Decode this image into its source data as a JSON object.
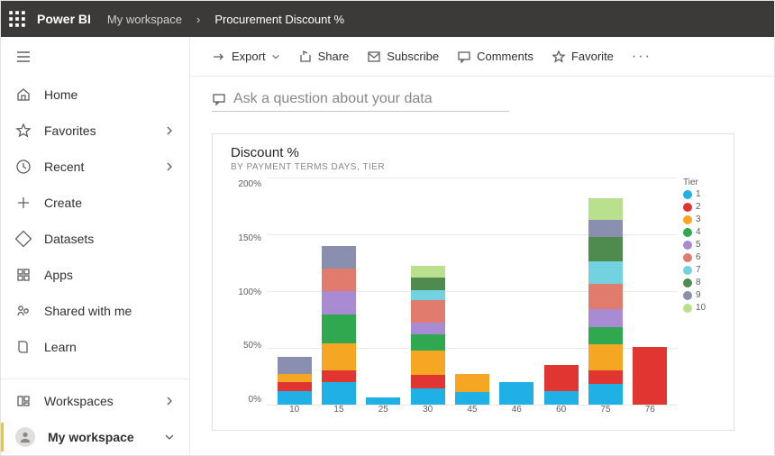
{
  "topbar": {
    "brand": "Power BI",
    "crumb1": "My workspace",
    "crumb2": "Procurement Discount %"
  },
  "sidebar": {
    "items": [
      {
        "key": "home",
        "label": "Home",
        "chev": false
      },
      {
        "key": "favorites",
        "label": "Favorites",
        "chev": true
      },
      {
        "key": "recent",
        "label": "Recent",
        "chev": true
      },
      {
        "key": "create",
        "label": "Create",
        "chev": false
      },
      {
        "key": "datasets",
        "label": "Datasets",
        "chev": false
      },
      {
        "key": "apps",
        "label": "Apps",
        "chev": false
      },
      {
        "key": "shared",
        "label": "Shared with me",
        "chev": false
      },
      {
        "key": "learn",
        "label": "Learn",
        "chev": false
      }
    ],
    "bottom": [
      {
        "key": "workspaces",
        "label": "Workspaces",
        "chev": true
      },
      {
        "key": "myworkspace",
        "label": "My workspace",
        "chev": true,
        "active": true
      }
    ]
  },
  "toolbar": {
    "export": "Export",
    "share": "Share",
    "subscribe": "Subscribe",
    "comments": "Comments",
    "favorite": "Favorite"
  },
  "qna": {
    "placeholder": "Ask a question about your data"
  },
  "tile": {
    "title": "Discount %",
    "subtitle": "BY PAYMENT TERMS DAYS, TIER"
  },
  "chart": {
    "type": "stacked-bar",
    "ylim": [
      0,
      200
    ],
    "ytick_step": 50,
    "y_ticks": [
      "200%",
      "150%",
      "100%",
      "50%",
      "0%"
    ],
    "gridline_color": "#eceae8",
    "background_color": "#ffffff",
    "categories": [
      "10",
      "15",
      "25",
      "30",
      "45",
      "46",
      "60",
      "75",
      "76"
    ],
    "tier_colors": {
      "1": "#1fb0e6",
      "2": "#e03531",
      "3": "#f5a623",
      "4": "#2fa84f",
      "5": "#a98bd4",
      "6": "#e07b6d",
      "7": "#73d2e0",
      "8": "#4f8a4f",
      "9": "#8a8fb0",
      "10": "#b9e08c"
    },
    "series": [
      {
        "cat": "10",
        "stack": [
          {
            "tier": "1",
            "v": 12
          },
          {
            "tier": "2",
            "v": 8
          },
          {
            "tier": "3",
            "v": 7
          },
          {
            "tier": "9",
            "v": 15
          }
        ]
      },
      {
        "cat": "15",
        "stack": [
          {
            "tier": "1",
            "v": 20
          },
          {
            "tier": "2",
            "v": 10
          },
          {
            "tier": "3",
            "v": 24
          },
          {
            "tier": "4",
            "v": 25
          },
          {
            "tier": "5",
            "v": 21
          },
          {
            "tier": "6",
            "v": 20
          },
          {
            "tier": "9",
            "v": 20
          }
        ]
      },
      {
        "cat": "25",
        "stack": [
          {
            "tier": "1",
            "v": 6
          }
        ]
      },
      {
        "cat": "30",
        "stack": [
          {
            "tier": "1",
            "v": 14
          },
          {
            "tier": "2",
            "v": 12
          },
          {
            "tier": "3",
            "v": 22
          },
          {
            "tier": "4",
            "v": 14
          },
          {
            "tier": "5",
            "v": 10
          },
          {
            "tier": "6",
            "v": 20
          },
          {
            "tier": "7",
            "v": 9
          },
          {
            "tier": "8",
            "v": 11
          },
          {
            "tier": "10",
            "v": 10
          }
        ]
      },
      {
        "cat": "45",
        "stack": [
          {
            "tier": "1",
            "v": 11
          },
          {
            "tier": "3",
            "v": 16
          }
        ]
      },
      {
        "cat": "46",
        "stack": [
          {
            "tier": "1",
            "v": 20
          }
        ]
      },
      {
        "cat": "60",
        "stack": [
          {
            "tier": "1",
            "v": 12
          },
          {
            "tier": "2",
            "v": 23
          }
        ]
      },
      {
        "cat": "75",
        "stack": [
          {
            "tier": "1",
            "v": 18
          },
          {
            "tier": "2",
            "v": 12
          },
          {
            "tier": "3",
            "v": 23
          },
          {
            "tier": "4",
            "v": 15
          },
          {
            "tier": "5",
            "v": 16
          },
          {
            "tier": "6",
            "v": 22
          },
          {
            "tier": "7",
            "v": 20
          },
          {
            "tier": "8",
            "v": 22
          },
          {
            "tier": "9",
            "v": 15
          },
          {
            "tier": "10",
            "v": 19
          }
        ]
      },
      {
        "cat": "76",
        "stack": [
          {
            "tier": "2",
            "v": 51
          }
        ]
      }
    ],
    "legend_title": "Tier",
    "legend": [
      "1",
      "2",
      "3",
      "4",
      "5",
      "6",
      "7",
      "8",
      "9",
      "10"
    ]
  }
}
